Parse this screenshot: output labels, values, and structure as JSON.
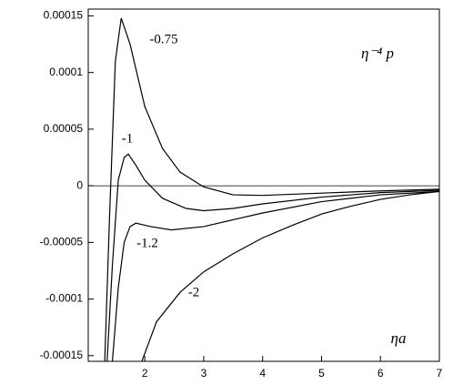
{
  "chart_data": {
    "type": "line",
    "annotations": [
      "η⁻⁴ p",
      "ηa"
    ],
    "xlim": [
      1.04,
      7
    ],
    "xticks": [
      2,
      3,
      4,
      5,
      6,
      7
    ],
    "ylim": [
      -0.000155,
      0.000156
    ],
    "yticks": [
      0.00015,
      0.0001,
      5e-05,
      0,
      -5e-05,
      -0.0001,
      -0.00015
    ],
    "series": [
      {
        "name": "-0.75",
        "color": "#000000",
        "x": [
          1.32,
          1.4,
          1.5,
          1.6,
          1.75,
          2.0,
          2.3,
          2.6,
          3.0,
          3.5,
          4,
          5,
          6,
          7
        ],
        "values": [
          -0.000155,
          -3e-05,
          0.00011,
          0.000148,
          0.000125,
          7e-05,
          3.3e-05,
          1.2e-05,
          -1e-06,
          -8e-06,
          -8.5e-06,
          -6.5e-06,
          -4.5e-06,
          -3e-06
        ]
      },
      {
        "name": "-1",
        "color": "#000000",
        "x": [
          1.36,
          1.45,
          1.55,
          1.65,
          1.72,
          1.85,
          2.0,
          2.3,
          2.7,
          3.0,
          3.5,
          4,
          5,
          6,
          7
        ],
        "values": [
          -0.000155,
          -7e-05,
          5e-06,
          2.5e-05,
          2.8e-05,
          1.8e-05,
          5e-06,
          -1.1e-05,
          -2e-05,
          -2.2e-05,
          -2e-05,
          -1.6e-05,
          -1e-05,
          -6e-06,
          -4e-06
        ]
      },
      {
        "name": "-1.2",
        "color": "#000000",
        "x": [
          1.45,
          1.55,
          1.65,
          1.75,
          1.85,
          2.1,
          2.45,
          3,
          3.5,
          4,
          5,
          6,
          7
        ],
        "values": [
          -0.000155,
          -9e-05,
          -5e-05,
          -3.6e-05,
          -3.3e-05,
          -3.6e-05,
          -3.9e-05,
          -3.6e-05,
          -3e-05,
          -2.4e-05,
          -1.4e-05,
          -8e-06,
          -5e-06
        ]
      },
      {
        "name": "-2",
        "color": "#000000",
        "x": [
          1.95,
          2.2,
          2.6,
          3,
          3.5,
          4,
          4.5,
          5,
          5.5,
          6,
          6.5,
          7
        ],
        "values": [
          -0.000155,
          -0.00012,
          -9.4e-05,
          -7.6e-05,
          -6e-05,
          -4.6e-05,
          -3.5e-05,
          -2.5e-05,
          -1.8e-05,
          -1.2e-05,
          -8e-06,
          -5e-06
        ]
      }
    ]
  }
}
